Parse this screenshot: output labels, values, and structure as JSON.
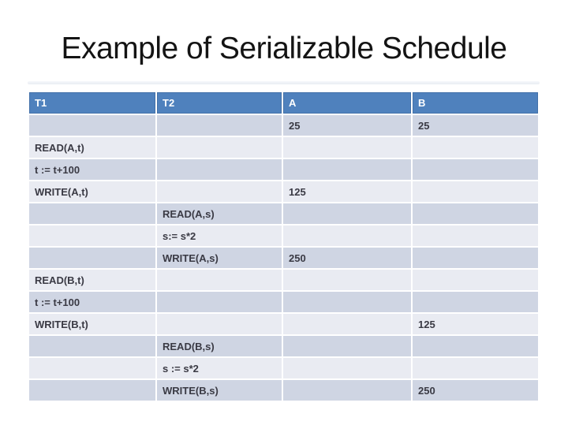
{
  "title": "Example of Serializable Schedule",
  "table": {
    "columns": [
      "T1",
      "T2",
      "A",
      "B"
    ],
    "rows": [
      [
        "",
        "",
        "25",
        "25"
      ],
      [
        "READ(A,t)",
        "",
        "",
        ""
      ],
      [
        "t := t+100",
        "",
        "",
        ""
      ],
      [
        "WRITE(A,t)",
        "",
        "125",
        ""
      ],
      [
        "",
        "READ(A,s)",
        "",
        ""
      ],
      [
        "",
        "s:= s*2",
        "",
        ""
      ],
      [
        "",
        "WRITE(A,s)",
        "250",
        ""
      ],
      [
        "READ(B,t)",
        "",
        "",
        ""
      ],
      [
        "t := t+100",
        "",
        "",
        ""
      ],
      [
        "WRITE(B,t)",
        "",
        "",
        "125"
      ],
      [
        "",
        "READ(B,s)",
        "",
        ""
      ],
      [
        "",
        "s := s*2",
        "",
        ""
      ],
      [
        "",
        "WRITE(B,s)",
        "",
        "250"
      ]
    ]
  },
  "colors": {
    "header_bg": "#4F81BD",
    "header_text": "#FFFFFF",
    "row_dark": "#CFD5E3",
    "row_light": "#E9EBF2",
    "cell_text": "#3A3A44",
    "title_text": "#141414",
    "grid_line": "#FFFFFF"
  }
}
